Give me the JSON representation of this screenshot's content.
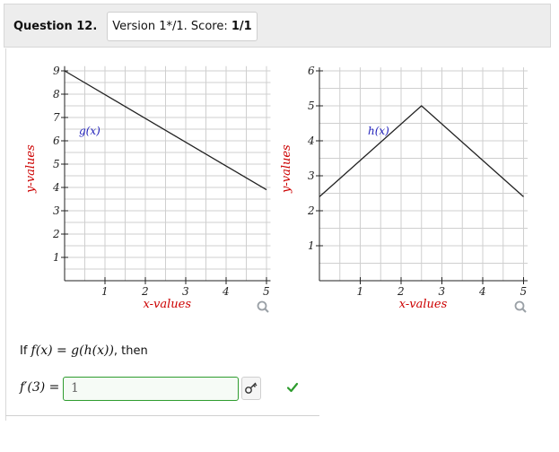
{
  "header": {
    "question_label": "Question 12.",
    "version_text": "Version 1*/1. Score: ",
    "score": "1/1"
  },
  "graphs": [
    {
      "function_label": "g(x)",
      "xlabel": "x-values",
      "ylabel": "y-values",
      "x_ticks": [
        "1",
        "2",
        "3",
        "4",
        "5"
      ],
      "y_ticks": [
        "1",
        "2",
        "3",
        "4",
        "5",
        "6",
        "7",
        "8",
        "9"
      ],
      "points": [
        [
          0,
          9
        ],
        [
          5,
          3.9
        ]
      ]
    },
    {
      "function_label": "h(x)",
      "xlabel": "x-values",
      "ylabel": "y-values",
      "x_ticks": [
        "1",
        "2",
        "3",
        "4",
        "5"
      ],
      "y_ticks": [
        "1",
        "2",
        "3",
        "4",
        "5",
        "6"
      ],
      "points": [
        [
          0,
          2.4
        ],
        [
          2.5,
          5
        ],
        [
          5,
          2.4
        ]
      ]
    }
  ],
  "question": {
    "prompt_prefix": "If ",
    "prompt_math": "f(x) = g(h(x))",
    "prompt_suffix": ", then",
    "answer_label": "f′(3) =",
    "answer_value": "1"
  },
  "colors": {
    "axis_label": "#cc0000",
    "function_label": "#2222bb",
    "grid": "#c8c8c8",
    "correct": "#2e9c2e"
  },
  "icons": [
    "zoom-icon",
    "check-icon",
    "key-icon"
  ]
}
